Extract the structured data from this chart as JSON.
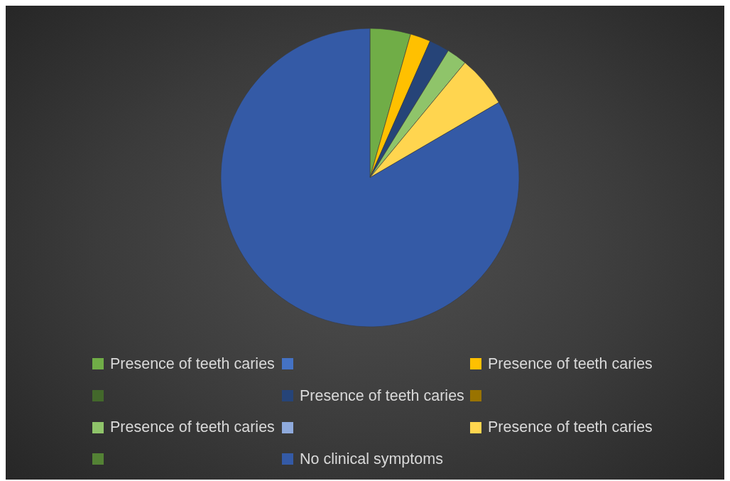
{
  "chart_data": {
    "type": "pie",
    "categories": [
      "Presence of teeth caries",
      null,
      "Presence of teeth caries",
      null,
      "Presence of teeth caries",
      null,
      "Presence of teeth caries",
      null,
      "Presence of teeth caries",
      null,
      "No clinical symptoms"
    ],
    "values": [
      4.4,
      0,
      2.2,
      0,
      2.2,
      0,
      2.2,
      0,
      5.6,
      0,
      83.4
    ],
    "colors": [
      "#70ad47",
      "#4472c4",
      "#ffc000",
      "#43682b",
      "#264478",
      "#997300",
      "#8fc46a",
      "#8faadc",
      "#ffd54f",
      "#548235",
      "#345aa6"
    ],
    "legend": "bottom"
  }
}
